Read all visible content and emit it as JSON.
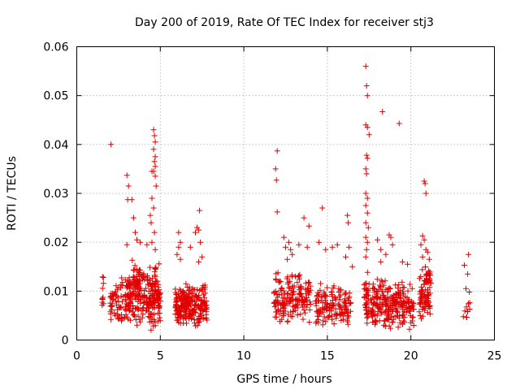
{
  "chart_data": {
    "type": "scatter",
    "title": "Day 200 of 2019, Rate Of TEC Index for receiver stj3",
    "xlabel": "GPS time / hours",
    "ylabel": "ROTI / TECUs",
    "xlim": [
      0,
      25
    ],
    "ylim": [
      0,
      0.06
    ],
    "xticks": [
      "0",
      "5",
      "10",
      "15",
      "20",
      "25"
    ],
    "yticks": [
      "0",
      "0.01",
      "0.02",
      "0.03",
      "0.04",
      "0.05",
      "0.06"
    ],
    "grid": true,
    "marker": "+",
    "marker_color": "#e00000",
    "series": [
      {
        "name": "ROTI",
        "clusters": [
          {
            "x_range": [
              1.5,
              1.6
            ],
            "y_range": [
              0.0035,
              0.0145
            ],
            "count": 10
          },
          {
            "x_range": [
              2.0,
              2.9
            ],
            "y_range": [
              0.003,
              0.013
            ],
            "count": 55
          },
          {
            "x_range": [
              2.9,
              4.3
            ],
            "y_range": [
              0.002,
              0.017
            ],
            "count": 180
          },
          {
            "x_range": [
              4.3,
              5.0
            ],
            "y_range": [
              0.0015,
              0.016
            ],
            "count": 110
          },
          {
            "x_range": [
              5.9,
              6.8
            ],
            "y_range": [
              0.003,
              0.012
            ],
            "count": 130
          },
          {
            "x_range": [
              6.8,
              7.8
            ],
            "y_range": [
              0.0025,
              0.012
            ],
            "count": 110
          },
          {
            "x_range": [
              11.8,
              12.5
            ],
            "y_range": [
              0.003,
              0.014
            ],
            "count": 60
          },
          {
            "x_range": [
              12.5,
              14.0
            ],
            "y_range": [
              0.003,
              0.015
            ],
            "count": 110
          },
          {
            "x_range": [
              14.3,
              16.4
            ],
            "y_range": [
              0.0025,
              0.012
            ],
            "count": 150
          },
          {
            "x_range": [
              17.2,
              17.5
            ],
            "y_range": [
              0.003,
              0.014
            ],
            "count": 40
          },
          {
            "x_range": [
              17.6,
              19.6
            ],
            "y_range": [
              0.0015,
              0.013
            ],
            "count": 200
          },
          {
            "x_range": [
              19.6,
              20.2
            ],
            "y_range": [
              0.002,
              0.012
            ],
            "count": 40
          },
          {
            "x_range": [
              20.5,
              21.2
            ],
            "y_range": [
              0.003,
              0.016
            ],
            "count": 90
          },
          {
            "x_range": [
              23.1,
              23.6
            ],
            "y_range": [
              0.0035,
              0.0085
            ],
            "count": 10
          }
        ],
        "points": [
          [
            2.05,
            0.04
          ],
          [
            3.0,
            0.0337
          ],
          [
            3.1,
            0.0315
          ],
          [
            3.05,
            0.0287
          ],
          [
            3.3,
            0.0287
          ],
          [
            3.4,
            0.025
          ],
          [
            3.5,
            0.022
          ],
          [
            3.0,
            0.0195
          ],
          [
            3.6,
            0.0205
          ],
          [
            3.8,
            0.02
          ],
          [
            4.2,
            0.0195
          ],
          [
            4.4,
            0.0255
          ],
          [
            4.45,
            0.024
          ],
          [
            4.5,
            0.02
          ],
          [
            4.5,
            0.0345
          ],
          [
            4.6,
            0.043
          ],
          [
            4.65,
            0.0418
          ],
          [
            4.7,
            0.0405
          ],
          [
            4.6,
            0.039
          ],
          [
            4.7,
            0.0375
          ],
          [
            4.65,
            0.0365
          ],
          [
            4.7,
            0.0355
          ],
          [
            4.6,
            0.0345
          ],
          [
            4.7,
            0.0335
          ],
          [
            4.75,
            0.0315
          ],
          [
            4.5,
            0.029
          ],
          [
            4.6,
            0.027
          ],
          [
            4.65,
            0.022
          ],
          [
            4.7,
            0.0185
          ],
          [
            6.1,
            0.022
          ],
          [
            6.2,
            0.02
          ],
          [
            6.1,
            0.019
          ],
          [
            6.0,
            0.0175
          ],
          [
            6.2,
            0.0165
          ],
          [
            6.8,
            0.019
          ],
          [
            7.2,
            0.023
          ],
          [
            7.1,
            0.022
          ],
          [
            7.3,
            0.0225
          ],
          [
            7.35,
            0.0265
          ],
          [
            7.4,
            0.02
          ],
          [
            7.5,
            0.017
          ],
          [
            7.3,
            0.016
          ],
          [
            12.0,
            0.0387
          ],
          [
            11.9,
            0.035
          ],
          [
            11.95,
            0.0327
          ],
          [
            12.0,
            0.0262
          ],
          [
            12.4,
            0.021
          ],
          [
            12.5,
            0.019
          ],
          [
            12.7,
            0.02
          ],
          [
            12.8,
            0.0185
          ],
          [
            12.9,
            0.0175
          ],
          [
            12.6,
            0.0165
          ],
          [
            13.6,
            0.025
          ],
          [
            13.9,
            0.0233
          ],
          [
            13.8,
            0.019
          ],
          [
            13.3,
            0.0195
          ],
          [
            14.5,
            0.02
          ],
          [
            14.7,
            0.027
          ],
          [
            14.9,
            0.0185
          ],
          [
            15.3,
            0.019
          ],
          [
            15.6,
            0.0195
          ],
          [
            16.2,
            0.0255
          ],
          [
            16.25,
            0.024
          ],
          [
            16.3,
            0.019
          ],
          [
            16.1,
            0.017
          ],
          [
            16.5,
            0.015
          ],
          [
            17.3,
            0.056
          ],
          [
            17.35,
            0.052
          ],
          [
            17.4,
            0.05
          ],
          [
            17.3,
            0.044
          ],
          [
            17.4,
            0.0435
          ],
          [
            17.5,
            0.042
          ],
          [
            17.35,
            0.0378
          ],
          [
            17.4,
            0.0372
          ],
          [
            17.3,
            0.035
          ],
          [
            17.35,
            0.034
          ],
          [
            17.3,
            0.03
          ],
          [
            17.4,
            0.029
          ],
          [
            17.3,
            0.0275
          ],
          [
            17.4,
            0.026
          ],
          [
            17.3,
            0.024
          ],
          [
            17.45,
            0.023
          ],
          [
            17.3,
            0.021
          ],
          [
            17.4,
            0.02
          ],
          [
            17.35,
            0.0185
          ],
          [
            17.3,
            0.017
          ],
          [
            18.3,
            0.0467
          ],
          [
            19.3,
            0.0443
          ],
          [
            18.0,
            0.0205
          ],
          [
            18.7,
            0.0215
          ],
          [
            18.8,
            0.021
          ],
          [
            18.9,
            0.0195
          ],
          [
            18.2,
            0.0185
          ],
          [
            18.5,
            0.0175
          ],
          [
            18.2,
            0.016
          ],
          [
            19.5,
            0.016
          ],
          [
            19.8,
            0.0155
          ],
          [
            20.8,
            0.0325
          ],
          [
            20.85,
            0.032
          ],
          [
            20.9,
            0.03
          ],
          [
            20.7,
            0.0213
          ],
          [
            20.8,
            0.0205
          ],
          [
            20.6,
            0.0195
          ],
          [
            20.9,
            0.0185
          ],
          [
            21.0,
            0.018
          ],
          [
            20.7,
            0.017
          ],
          [
            21.1,
            0.0165
          ],
          [
            23.2,
            0.0153
          ],
          [
            23.45,
            0.0175
          ],
          [
            23.4,
            0.0135
          ],
          [
            23.3,
            0.0105
          ],
          [
            23.5,
            0.0098
          ]
        ]
      }
    ]
  }
}
